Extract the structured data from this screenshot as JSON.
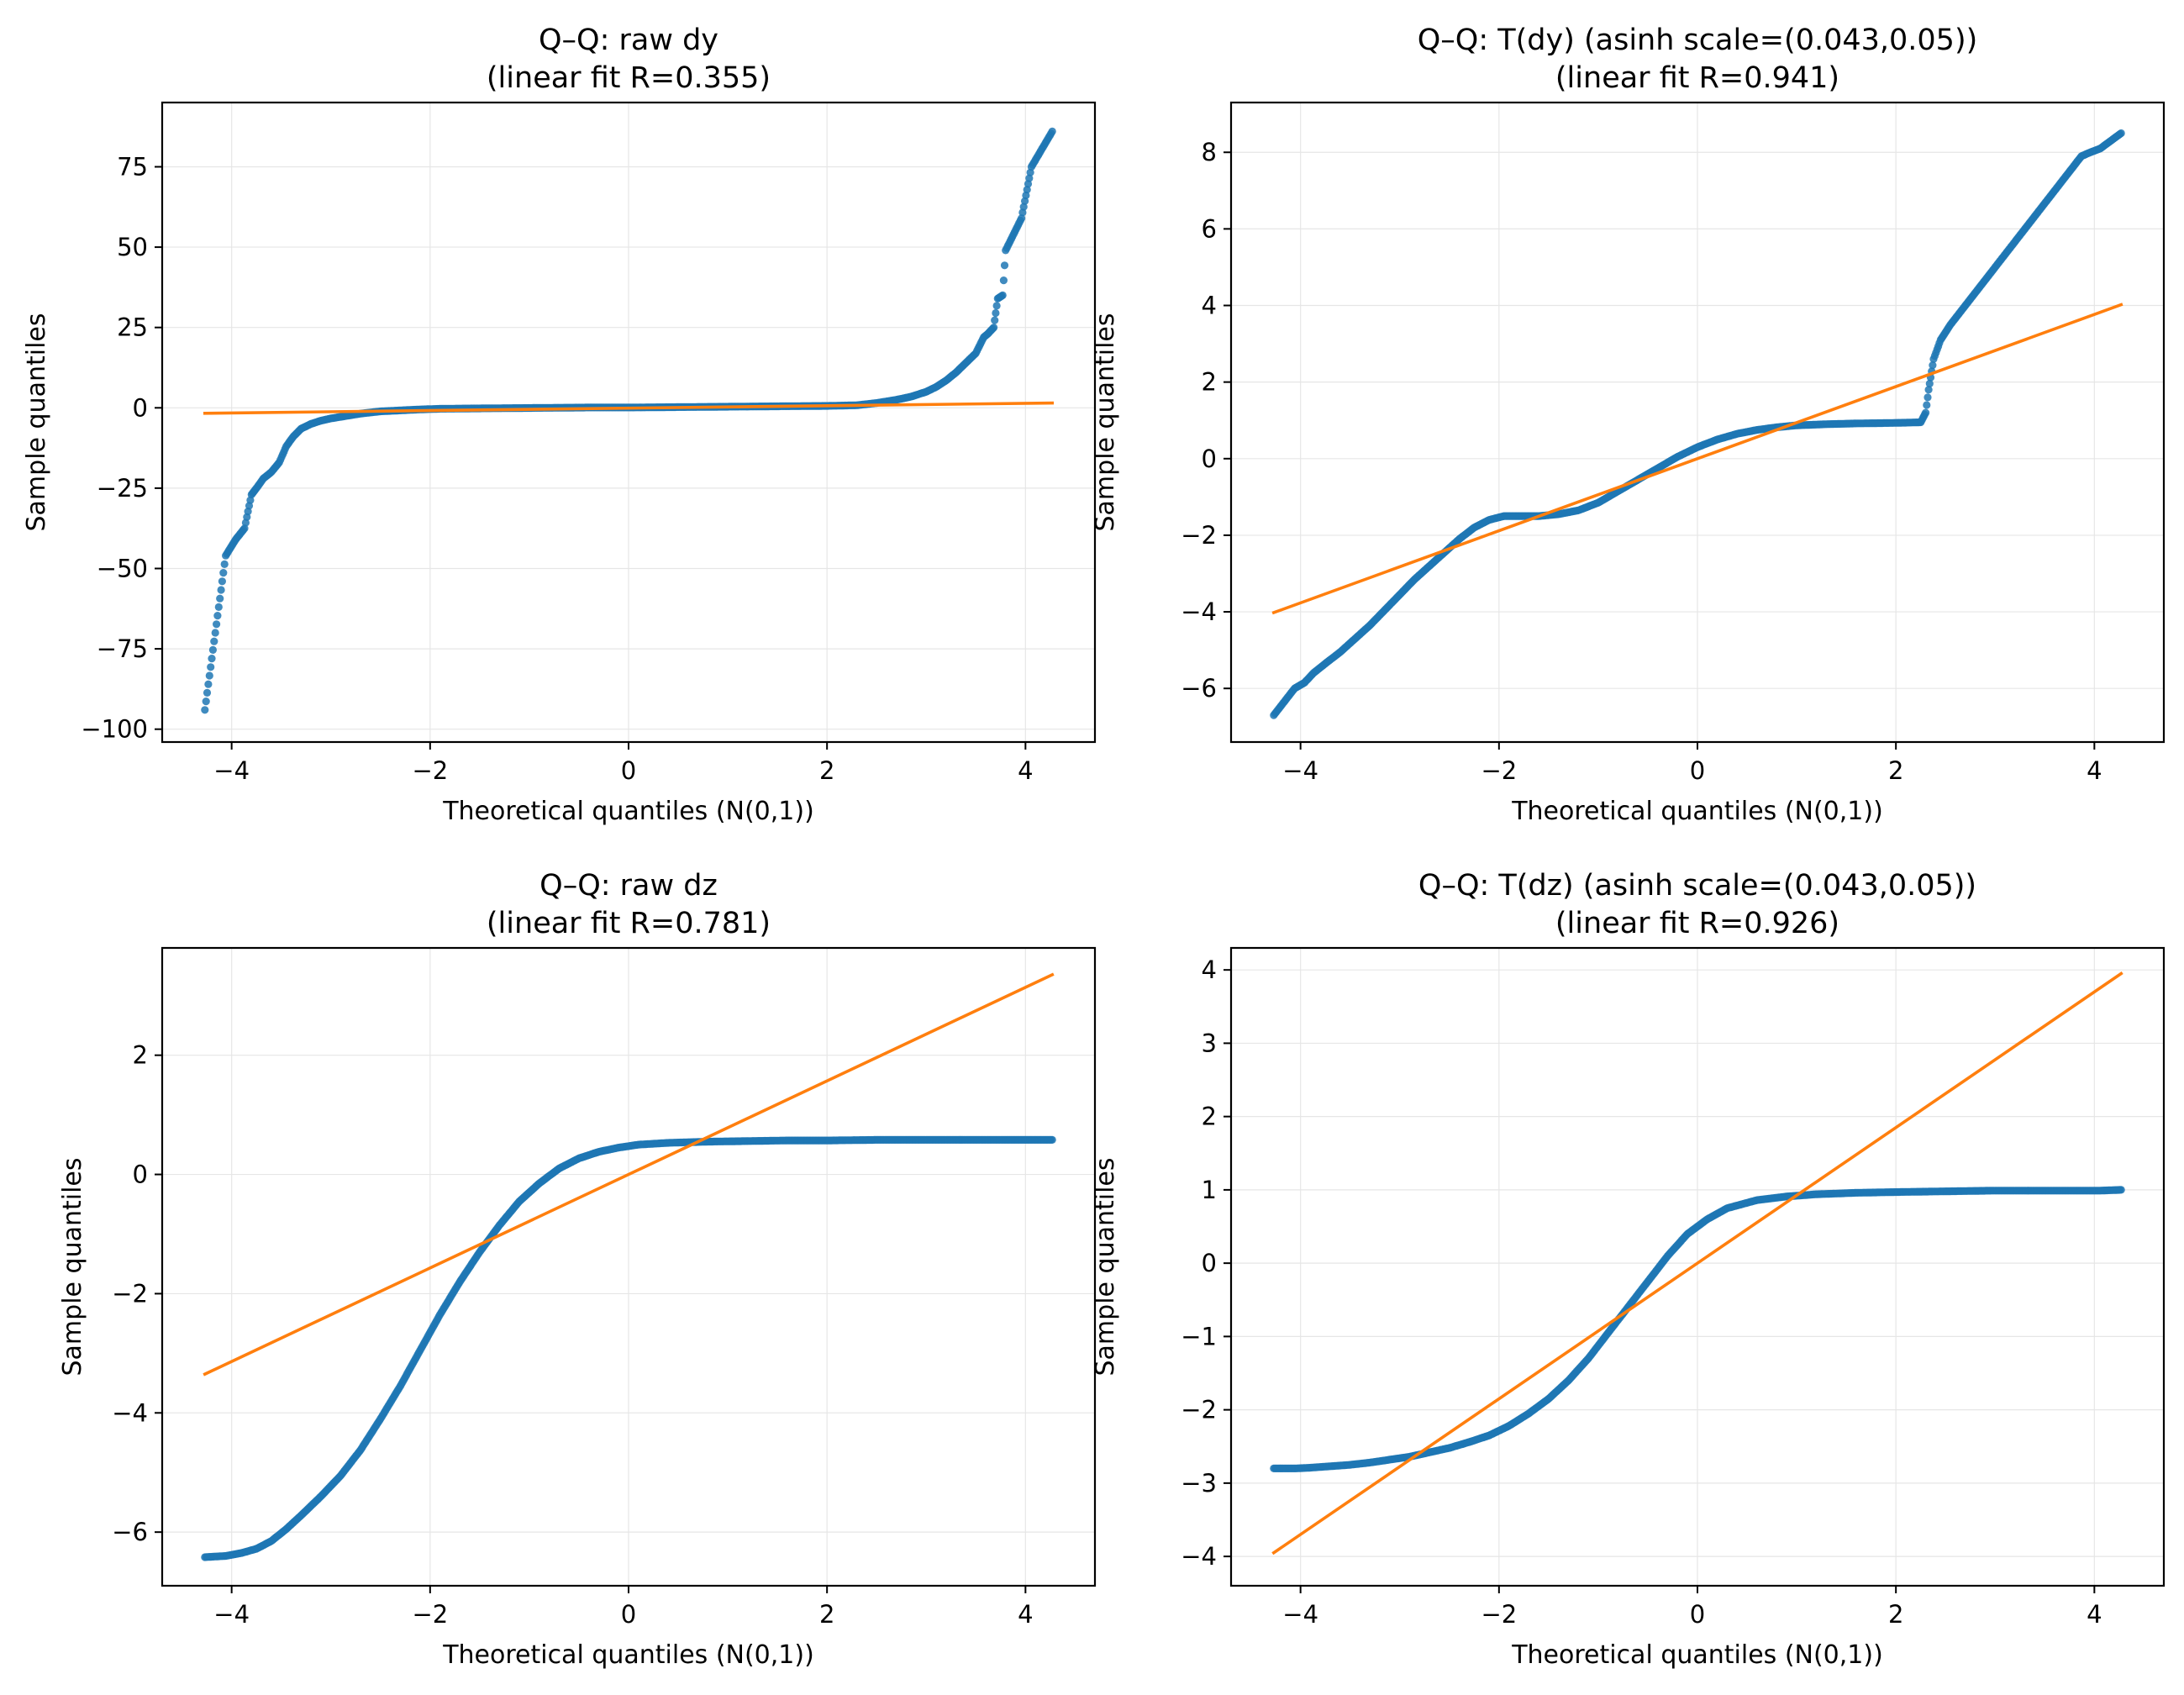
{
  "colors": {
    "points": "#1f77b4",
    "fit_line": "#ff7f0e",
    "grid": "#e6e6e6",
    "axes": "#000000"
  },
  "chart_data": [
    {
      "type": "scatter",
      "title": "Q–Q: raw dy",
      "subtitle": "(linear fit R=0.355)",
      "xlabel": "Theoretical quantiles (N(0,1))",
      "ylabel": "Sample quantiles",
      "xlim": [
        -4.7,
        4.7
      ],
      "ylim": [
        -104,
        95
      ],
      "xticks": [
        -4,
        -2,
        0,
        2,
        4
      ],
      "xtick_labels": [
        "−4",
        "−2",
        "0",
        "2",
        "4"
      ],
      "yticks": [
        -100,
        -75,
        -50,
        -25,
        0,
        25,
        50,
        75
      ],
      "ytick_labels": [
        "−100",
        "−75",
        "−50",
        "−25",
        "0",
        "25",
        "50",
        "75"
      ],
      "grid": true,
      "series": [
        {
          "name": "sample quantiles",
          "x": [
            -4.27,
            -4.06,
            -3.96,
            -3.87,
            -3.8,
            -3.75,
            -3.68,
            -3.6,
            -3.52,
            -3.45,
            -3.38,
            -3.3,
            -3.2,
            -3.1,
            -3.0,
            -2.9,
            -2.8,
            -2.7,
            -2.5,
            -2.3,
            -2.1,
            -1.9,
            -1.6,
            -1.2,
            -0.8,
            -0.4,
            0.0,
            0.4,
            0.8,
            1.2,
            1.6,
            2.0,
            2.3,
            2.5,
            2.7,
            2.85,
            3.0,
            3.1,
            3.2,
            3.3,
            3.4,
            3.5,
            3.58,
            3.62,
            3.68,
            3.72,
            3.77,
            3.8,
            3.96,
            4.06,
            4.27
          ],
          "y": [
            -94,
            -46,
            -41,
            -37.5,
            -27,
            -25,
            -22,
            -20,
            -17,
            -12,
            -9,
            -6.5,
            -5,
            -4,
            -3.3,
            -2.8,
            -2.3,
            -1.8,
            -1.1,
            -0.8,
            -0.5,
            -0.3,
            -0.2,
            -0.1,
            0.0,
            0.1,
            0.1,
            0.2,
            0.3,
            0.4,
            0.5,
            0.6,
            0.8,
            1.5,
            2.5,
            3.5,
            5,
            6.5,
            8.5,
            11,
            14,
            17,
            22,
            23,
            25,
            34,
            35,
            49,
            59,
            75,
            86
          ]
        },
        {
          "name": "linear fit",
          "x": [
            -4.27,
            4.27
          ],
          "y": [
            -1.7,
            1.5
          ]
        }
      ]
    },
    {
      "type": "scatter",
      "title": "Q–Q: T(dy) (asinh scale=(0.043,0.05))",
      "subtitle": "(linear fit R=0.941)",
      "xlabel": "Theoretical quantiles (N(0,1))",
      "ylabel": "Sample quantiles",
      "xlim": [
        -4.7,
        4.7
      ],
      "ylim": [
        -7.4,
        9.3
      ],
      "xticks": [
        -4,
        -2,
        0,
        2,
        4
      ],
      "xtick_labels": [
        "−4",
        "−2",
        "0",
        "2",
        "4"
      ],
      "yticks": [
        -6,
        -4,
        -2,
        0,
        2,
        4,
        6,
        8
      ],
      "ytick_labels": [
        "−6",
        "−4",
        "−2",
        "0",
        "2",
        "4",
        "6",
        "8"
      ],
      "grid": true,
      "series": [
        {
          "name": "sample quantiles",
          "x": [
            -4.27,
            -4.06,
            -3.96,
            -3.87,
            -3.75,
            -3.6,
            -3.45,
            -3.3,
            -3.15,
            -3.0,
            -2.85,
            -2.7,
            -2.55,
            -2.4,
            -2.25,
            -2.1,
            -1.95,
            -1.8,
            -1.6,
            -1.4,
            -1.2,
            -1.0,
            -0.8,
            -0.6,
            -0.4,
            -0.2,
            0.0,
            0.2,
            0.4,
            0.6,
            0.8,
            1.0,
            1.3,
            1.6,
            1.9,
            2.1,
            2.25,
            2.3,
            2.33,
            2.38,
            2.45,
            2.55,
            2.7,
            2.85,
            3.0,
            3.15,
            3.3,
            3.45,
            3.6,
            3.75,
            3.87,
            3.96,
            4.06,
            4.27
          ],
          "y": [
            -6.7,
            -6.0,
            -5.85,
            -5.6,
            -5.35,
            -5.05,
            -4.7,
            -4.35,
            -3.95,
            -3.55,
            -3.15,
            -2.8,
            -2.45,
            -2.1,
            -1.8,
            -1.6,
            -1.5,
            -1.5,
            -1.5,
            -1.45,
            -1.35,
            -1.15,
            -0.85,
            -0.55,
            -0.25,
            0.05,
            0.3,
            0.5,
            0.65,
            0.75,
            0.82,
            0.87,
            0.9,
            0.92,
            0.93,
            0.94,
            0.95,
            1.2,
            1.8,
            2.6,
            3.1,
            3.5,
            4.0,
            4.5,
            5.0,
            5.5,
            6.0,
            6.5,
            7.0,
            7.5,
            7.9,
            8.0,
            8.1,
            8.5
          ]
        },
        {
          "name": "linear fit",
          "x": [
            -4.27,
            4.27
          ],
          "y": [
            -4.02,
            4.02
          ]
        }
      ]
    },
    {
      "type": "scatter",
      "title": "Q–Q: raw dz",
      "subtitle": "(linear fit R=0.781)",
      "xlabel": "Theoretical quantiles (N(0,1))",
      "ylabel": "Sample quantiles",
      "xlim": [
        -4.7,
        4.7
      ],
      "ylim": [
        -6.9,
        3.8
      ],
      "xticks": [
        -4,
        -2,
        0,
        2,
        4
      ],
      "xtick_labels": [
        "−4",
        "−2",
        "0",
        "2",
        "4"
      ],
      "yticks": [
        -6,
        -4,
        -2,
        0,
        2
      ],
      "ytick_labels": [
        "−6",
        "−4",
        "−2",
        "0",
        "2"
      ],
      "grid": true,
      "series": [
        {
          "name": "sample quantiles",
          "x": [
            -4.27,
            -4.06,
            -3.9,
            -3.75,
            -3.6,
            -3.45,
            -3.3,
            -3.1,
            -2.9,
            -2.7,
            -2.5,
            -2.3,
            -2.1,
            -1.9,
            -1.7,
            -1.5,
            -1.3,
            -1.1,
            -0.9,
            -0.7,
            -0.5,
            -0.3,
            -0.1,
            0.1,
            0.4,
            0.8,
            1.2,
            1.6,
            2.0,
            2.5,
            3.0,
            3.5,
            3.8,
            3.96,
            4.06,
            4.27
          ],
          "y": [
            -6.42,
            -6.4,
            -6.35,
            -6.28,
            -6.15,
            -5.95,
            -5.72,
            -5.4,
            -5.05,
            -4.62,
            -4.1,
            -3.55,
            -2.95,
            -2.35,
            -1.8,
            -1.3,
            -0.85,
            -0.45,
            -0.15,
            0.1,
            0.27,
            0.38,
            0.45,
            0.5,
            0.53,
            0.55,
            0.56,
            0.57,
            0.57,
            0.58,
            0.58,
            0.58,
            0.58,
            0.58,
            0.58,
            0.58
          ]
        },
        {
          "name": "linear fit",
          "x": [
            -4.27,
            4.27
          ],
          "y": [
            -3.35,
            3.35
          ]
        }
      ]
    },
    {
      "type": "scatter",
      "title": "Q–Q: T(dz) (asinh scale=(0.043,0.05))",
      "subtitle": "(linear fit R=0.926)",
      "xlabel": "Theoretical quantiles (N(0,1))",
      "ylabel": "Sample quantiles",
      "xlim": [
        -4.7,
        4.7
      ],
      "ylim": [
        -4.4,
        4.3
      ],
      "xticks": [
        -4,
        -2,
        0,
        2,
        4
      ],
      "xtick_labels": [
        "−4",
        "−2",
        "0",
        "2",
        "4"
      ],
      "yticks": [
        -4,
        -3,
        -2,
        -1,
        0,
        1,
        2,
        3,
        4
      ],
      "ytick_labels": [
        "−4",
        "−3",
        "−2",
        "−1",
        "0",
        "1",
        "2",
        "3",
        "4"
      ],
      "grid": true,
      "series": [
        {
          "name": "sample quantiles",
          "x": [
            -4.27,
            -4.06,
            -3.9,
            -3.7,
            -3.5,
            -3.3,
            -3.1,
            -2.9,
            -2.7,
            -2.5,
            -2.3,
            -2.1,
            -1.9,
            -1.7,
            -1.5,
            -1.3,
            -1.1,
            -0.9,
            -0.7,
            -0.5,
            -0.3,
            -0.1,
            0.1,
            0.3,
            0.6,
            0.9,
            1.2,
            1.6,
            2.0,
            2.5,
            3.0,
            3.5,
            3.8,
            3.96,
            4.06,
            4.27
          ],
          "y": [
            -2.8,
            -2.8,
            -2.79,
            -2.77,
            -2.75,
            -2.72,
            -2.68,
            -2.64,
            -2.58,
            -2.52,
            -2.44,
            -2.35,
            -2.22,
            -2.05,
            -1.85,
            -1.6,
            -1.3,
            -0.95,
            -0.6,
            -0.25,
            0.1,
            0.4,
            0.6,
            0.75,
            0.86,
            0.91,
            0.94,
            0.96,
            0.97,
            0.98,
            0.99,
            0.99,
            0.99,
            0.99,
            0.99,
            1.0
          ]
        },
        {
          "name": "linear fit",
          "x": [
            -4.27,
            4.27
          ],
          "y": [
            -3.95,
            3.95
          ]
        }
      ]
    }
  ]
}
